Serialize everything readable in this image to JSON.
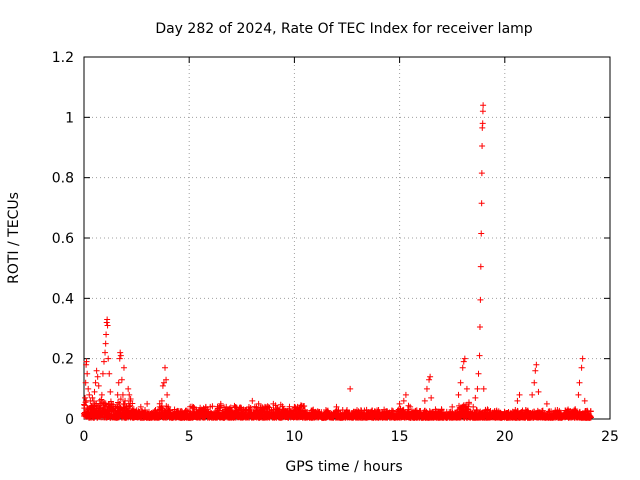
{
  "chart_data": {
    "type": "scatter",
    "title": "Day 282 of 2024, Rate Of TEC Index for receiver lamp",
    "xlabel": "GPS time / hours",
    "ylabel": "ROTI / TECUs",
    "xlim": [
      0,
      25
    ],
    "ylim": [
      0,
      1.2
    ],
    "xticks": [
      0,
      5,
      10,
      15,
      20,
      25
    ],
    "xtick_labels": [
      "0",
      "5",
      "10",
      "15",
      "20",
      "25"
    ],
    "yticks": [
      0,
      0.2,
      0.4,
      0.6,
      0.8,
      1,
      1.2
    ],
    "ytick_labels": [
      "0",
      "0.2",
      "0.4",
      "0.6",
      "0.8",
      "1",
      "1.2"
    ],
    "grid": true,
    "legend": "none",
    "marker": "plus",
    "color": "#ff0000",
    "series": [
      {
        "points": [
          [
            0.0,
            0.01
          ],
          [
            0.05,
            0.07
          ],
          [
            0.08,
            0.12
          ],
          [
            0.1,
            0.18
          ],
          [
            0.12,
            0.19
          ],
          [
            0.15,
            0.15
          ],
          [
            0.2,
            0.1
          ],
          [
            0.25,
            0.08
          ],
          [
            0.3,
            0.06
          ],
          [
            0.35,
            0.04
          ],
          [
            0.4,
            0.07
          ],
          [
            0.45,
            0.03
          ],
          [
            0.5,
            0.09
          ],
          [
            0.55,
            0.12
          ],
          [
            0.6,
            0.16
          ],
          [
            0.65,
            0.14
          ],
          [
            0.7,
            0.11
          ],
          [
            0.75,
            0.06
          ],
          [
            0.8,
            0.05
          ],
          [
            0.85,
            0.08
          ],
          [
            0.9,
            0.15
          ],
          [
            0.95,
            0.19
          ],
          [
            1.0,
            0.22
          ],
          [
            1.03,
            0.25
          ],
          [
            1.05,
            0.28
          ],
          [
            1.08,
            0.32
          ],
          [
            1.1,
            0.33
          ],
          [
            1.12,
            0.31
          ],
          [
            1.15,
            0.2
          ],
          [
            1.2,
            0.15
          ],
          [
            1.25,
            0.09
          ],
          [
            1.3,
            0.05
          ],
          [
            1.4,
            0.03
          ],
          [
            1.5,
            0.02
          ],
          [
            1.6,
            0.08
          ],
          [
            1.65,
            0.12
          ],
          [
            1.7,
            0.2
          ],
          [
            1.72,
            0.22
          ],
          [
            1.75,
            0.21
          ],
          [
            1.8,
            0.13
          ],
          [
            1.85,
            0.08
          ],
          [
            1.9,
            0.17
          ],
          [
            1.95,
            0.06
          ],
          [
            2.0,
            0.04
          ],
          [
            2.1,
            0.1
          ],
          [
            2.15,
            0.08
          ],
          [
            2.2,
            0.06
          ],
          [
            2.3,
            0.03
          ],
          [
            2.5,
            0.02
          ],
          [
            2.7,
            0.04
          ],
          [
            2.9,
            0.03
          ],
          [
            3.0,
            0.05
          ],
          [
            3.2,
            0.02
          ],
          [
            3.4,
            0.03
          ],
          [
            3.6,
            0.04
          ],
          [
            3.7,
            0.06
          ],
          [
            3.75,
            0.11
          ],
          [
            3.8,
            0.12
          ],
          [
            3.85,
            0.17
          ],
          [
            3.9,
            0.13
          ],
          [
            3.95,
            0.08
          ],
          [
            4.0,
            0.04
          ],
          [
            4.1,
            0.02
          ],
          [
            4.3,
            0.01
          ],
          [
            4.6,
            0.01
          ],
          [
            5.0,
            0.02
          ],
          [
            5.5,
            0.03
          ],
          [
            6.0,
            0.04
          ],
          [
            6.5,
            0.05
          ],
          [
            7.0,
            0.03
          ],
          [
            7.5,
            0.02
          ],
          [
            8.0,
            0.06
          ],
          [
            8.3,
            0.05
          ],
          [
            8.6,
            0.04
          ],
          [
            9.0,
            0.05
          ],
          [
            9.5,
            0.03
          ],
          [
            10.0,
            0.04
          ],
          [
            10.5,
            0.03
          ],
          [
            11.0,
            0.02
          ],
          [
            11.5,
            0.03
          ],
          [
            12.0,
            0.04
          ],
          [
            12.5,
            0.03
          ],
          [
            12.65,
            0.1
          ],
          [
            13.0,
            0.02
          ],
          [
            13.5,
            0.02
          ],
          [
            14.0,
            0.03
          ],
          [
            14.5,
            0.02
          ],
          [
            15.0,
            0.05
          ],
          [
            15.2,
            0.06
          ],
          [
            15.3,
            0.08
          ],
          [
            15.5,
            0.04
          ],
          [
            16.0,
            0.02
          ],
          [
            16.2,
            0.06
          ],
          [
            16.3,
            0.1
          ],
          [
            16.4,
            0.13
          ],
          [
            16.45,
            0.14
          ],
          [
            16.5,
            0.07
          ],
          [
            17.0,
            0.03
          ],
          [
            17.5,
            0.04
          ],
          [
            17.8,
            0.08
          ],
          [
            17.9,
            0.12
          ],
          [
            18.0,
            0.17
          ],
          [
            18.05,
            0.19
          ],
          [
            18.1,
            0.2
          ],
          [
            18.2,
            0.1
          ],
          [
            18.3,
            0.05
          ],
          [
            18.5,
            0.04
          ],
          [
            18.6,
            0.07
          ],
          [
            18.7,
            0.1
          ],
          [
            18.75,
            0.15
          ],
          [
            18.8,
            0.21
          ],
          [
            18.82,
            0.305
          ],
          [
            18.84,
            0.395
          ],
          [
            18.86,
            0.505
          ],
          [
            18.88,
            0.615
          ],
          [
            18.9,
            0.715
          ],
          [
            18.91,
            0.815
          ],
          [
            18.92,
            0.905
          ],
          [
            18.93,
            0.965
          ],
          [
            18.95,
            0.98
          ],
          [
            18.96,
            1.02
          ],
          [
            18.97,
            1.04
          ],
          [
            19.0,
            0.1
          ],
          [
            19.2,
            0.03
          ],
          [
            19.5,
            0.02
          ],
          [
            20.0,
            0.02
          ],
          [
            20.5,
            0.03
          ],
          [
            20.6,
            0.06
          ],
          [
            20.7,
            0.08
          ],
          [
            21.0,
            0.03
          ],
          [
            21.3,
            0.08
          ],
          [
            21.4,
            0.12
          ],
          [
            21.45,
            0.16
          ],
          [
            21.5,
            0.18
          ],
          [
            21.6,
            0.09
          ],
          [
            22.0,
            0.05
          ],
          [
            22.5,
            0.03
          ],
          [
            23.0,
            0.02
          ],
          [
            23.5,
            0.08
          ],
          [
            23.55,
            0.12
          ],
          [
            23.65,
            0.17
          ],
          [
            23.7,
            0.2
          ],
          [
            23.8,
            0.06
          ],
          [
            24.0,
            0.01
          ]
        ]
      }
    ]
  }
}
